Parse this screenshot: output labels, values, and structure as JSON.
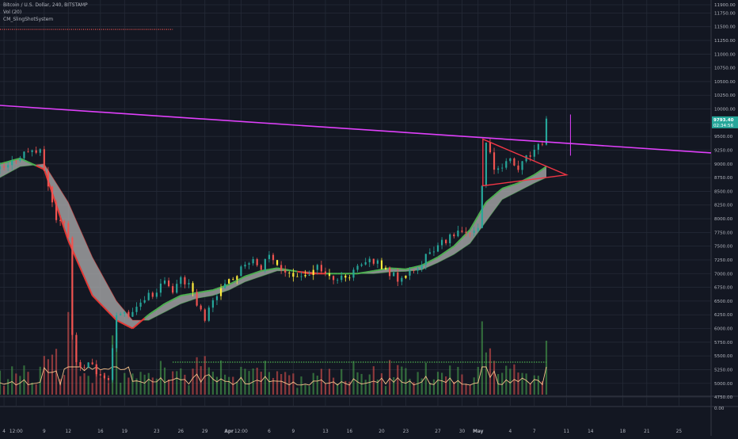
{
  "header": {
    "symbol": "Bitcoin / U.S. Dollar, 240, BITSTAMP",
    "indicators": [
      "Vol (20)",
      "CM_SlingShotSystem"
    ]
  },
  "colors": {
    "background": "#131722",
    "grid": "#252a37",
    "up_candle": "#26a69a",
    "down_candle": "#ef5350",
    "yellow_candle": "#ffeb3b",
    "ema_fast_up": "#4caf50",
    "ema_fast_down": "#e53935",
    "ema_fill": "#b2b2b2",
    "trendline": "#e040fb",
    "triangle": "#f23645",
    "vol_up": "#4caf50",
    "vol_down": "#ef5350",
    "vol_ma": "#f6c28b",
    "axis_text": "#b2b5be",
    "price_label_bg": "#26a69a"
  },
  "chart_data": {
    "type": "candlestick",
    "title": "Bitcoin / U.S. Dollar, 240, BITSTAMP",
    "ylim": [
      4650,
      11900
    ],
    "price_ticks": [
      "11900.00",
      "11750.00",
      "11500.00",
      "11250.00",
      "11000.00",
      "10750.00",
      "10500.00",
      "10250.00",
      "10000.00",
      "9750.00",
      "9500.00",
      "9250.00",
      "9000.00",
      "8750.00",
      "8500.00",
      "8250.00",
      "8000.00",
      "7750.00",
      "7500.00",
      "7250.00",
      "7000.00",
      "6750.00",
      "6500.00",
      "6250.00",
      "6000.00",
      "5750.00",
      "5500.00",
      "5250.00",
      "5000.00",
      "4750.00"
    ],
    "price_tick_values": [
      11900,
      11750,
      11500,
      11250,
      11000,
      10750,
      10500,
      10250,
      10000,
      9750,
      9500,
      9250,
      9000,
      8750,
      8500,
      8250,
      8000,
      7750,
      7500,
      7250,
      7000,
      6750,
      6500,
      6250,
      6000,
      5750,
      5500,
      5250,
      5000,
      4750
    ],
    "zero_label": "0.00",
    "current_price_label": "9793.40",
    "countdown_label": "02:34:56",
    "current_price": 9793.4,
    "x_ticks": [
      "4",
      "12:00",
      "9",
      "12",
      "16",
      "19",
      "23",
      "26",
      "29",
      "Apr",
      "12:00",
      "6",
      "9",
      "13",
      "16",
      "20",
      "23",
      "27",
      "30",
      "May",
      "4",
      "7",
      "11",
      "14",
      "18",
      "21",
      "25"
    ],
    "x_tick_days": [
      4,
      5.5,
      9,
      12,
      16,
      19,
      23,
      26,
      29,
      32,
      33.5,
      37,
      40,
      44,
      47,
      51,
      54,
      58,
      61,
      63,
      67,
      70,
      74,
      77,
      81,
      84,
      88
    ],
    "x_tick_bold": [
      false,
      false,
      false,
      false,
      false,
      false,
      false,
      false,
      false,
      true,
      false,
      false,
      false,
      false,
      false,
      false,
      false,
      false,
      false,
      true,
      false,
      false,
      false,
      false,
      false,
      false,
      false
    ],
    "x_range_days": [
      3.5,
      92
    ],
    "price_path": [
      [
        3.5,
        8900
      ],
      [
        4.5,
        8950
      ],
      [
        5.5,
        9100
      ],
      [
        6.5,
        9200
      ],
      [
        7.5,
        9250
      ],
      [
        8.5,
        9200
      ],
      [
        9.5,
        8600
      ],
      [
        10.5,
        8000
      ],
      [
        11.5,
        7900
      ],
      [
        12,
        7700
      ],
      [
        12.3,
        6100
      ],
      [
        13,
        5400
      ],
      [
        14,
        5300
      ],
      [
        15,
        5350
      ],
      [
        16,
        5100
      ],
      [
        17,
        5000
      ],
      [
        18,
        6200
      ],
      [
        19,
        6300
      ],
      [
        20,
        6250
      ],
      [
        21,
        6500
      ],
      [
        22,
        6600
      ],
      [
        23,
        6650
      ],
      [
        24,
        6900
      ],
      [
        25,
        6700
      ],
      [
        26,
        6900
      ],
      [
        27,
        6800
      ],
      [
        28,
        6400
      ],
      [
        29,
        6200
      ],
      [
        30,
        6500
      ],
      [
        31,
        6800
      ],
      [
        32,
        6900
      ],
      [
        33,
        7000
      ],
      [
        34,
        7200
      ],
      [
        35,
        7300
      ],
      [
        36,
        7100
      ],
      [
        37,
        7300
      ],
      [
        38,
        7200
      ],
      [
        39,
        7050
      ],
      [
        40,
        7000
      ],
      [
        41,
        6900
      ],
      [
        42,
        7000
      ],
      [
        43,
        7100
      ],
      [
        44,
        7050
      ],
      [
        45,
        6950
      ],
      [
        46,
        6900
      ],
      [
        47,
        6950
      ],
      [
        48,
        7100
      ],
      [
        49,
        7200
      ],
      [
        50,
        7250
      ],
      [
        51,
        7150
      ],
      [
        52,
        7000
      ],
      [
        53,
        6900
      ],
      [
        54,
        7000
      ],
      [
        55,
        7100
      ],
      [
        56,
        7200
      ],
      [
        57,
        7400
      ],
      [
        58,
        7500
      ],
      [
        59,
        7600
      ],
      [
        60,
        7700
      ],
      [
        61,
        7750
      ],
      [
        62,
        7800
      ],
      [
        63,
        7850
      ],
      [
        64,
        9400
      ],
      [
        65,
        8900
      ],
      [
        66,
        9000
      ],
      [
        67,
        9050
      ],
      [
        68,
        8900
      ],
      [
        69,
        9100
      ],
      [
        70,
        9200
      ],
      [
        71,
        9400
      ],
      [
        71.5,
        9793.4
      ]
    ],
    "ema_fast": [
      [
        3.5,
        9000
      ],
      [
        6,
        9100
      ],
      [
        9,
        8900
      ],
      [
        12,
        7600
      ],
      [
        15,
        6600
      ],
      [
        18,
        6150
      ],
      [
        20,
        6000
      ],
      [
        22,
        6250
      ],
      [
        24,
        6450
      ],
      [
        26,
        6600
      ],
      [
        28,
        6650
      ],
      [
        30,
        6700
      ],
      [
        32,
        6800
      ],
      [
        34,
        6950
      ],
      [
        36,
        7050
      ],
      [
        38,
        7100
      ],
      [
        40,
        7050
      ],
      [
        42,
        7000
      ],
      [
        44,
        7000
      ],
      [
        46,
        7000
      ],
      [
        48,
        7000
      ],
      [
        50,
        7050
      ],
      [
        52,
        7100
      ],
      [
        54,
        7080
      ],
      [
        56,
        7150
      ],
      [
        58,
        7300
      ],
      [
        60,
        7500
      ],
      [
        62,
        7800
      ],
      [
        64,
        8300
      ],
      [
        66,
        8550
      ],
      [
        68,
        8650
      ],
      [
        70,
        8800
      ],
      [
        71.5,
        8950
      ]
    ],
    "ema_slow": [
      [
        3.5,
        8750
      ],
      [
        6,
        8950
      ],
      [
        9,
        9000
      ],
      [
        12,
        8300
      ],
      [
        15,
        7300
      ],
      [
        18,
        6500
      ],
      [
        20,
        6150
      ],
      [
        22,
        6150
      ],
      [
        24,
        6300
      ],
      [
        26,
        6450
      ],
      [
        28,
        6550
      ],
      [
        30,
        6600
      ],
      [
        32,
        6700
      ],
      [
        34,
        6850
      ],
      [
        36,
        6950
      ],
      [
        38,
        7050
      ],
      [
        40,
        7050
      ],
      [
        42,
        7030
      ],
      [
        44,
        7000
      ],
      [
        46,
        7000
      ],
      [
        48,
        7000
      ],
      [
        50,
        7000
      ],
      [
        52,
        7030
      ],
      [
        54,
        7040
      ],
      [
        56,
        7070
      ],
      [
        58,
        7200
      ],
      [
        60,
        7350
      ],
      [
        62,
        7550
      ],
      [
        64,
        7950
      ],
      [
        66,
        8350
      ],
      [
        68,
        8500
      ],
      [
        70,
        8650
      ],
      [
        71.5,
        8750
      ]
    ],
    "trendline": [
      [
        0,
        10100
      ],
      [
        92,
        9200
      ]
    ],
    "triangle": [
      [
        63.6,
        9450
      ],
      [
        74,
        8800
      ],
      [
        63.6,
        8600
      ]
    ],
    "vertical_marker": {
      "day": 74.5,
      "from": 9150,
      "to": 9900
    },
    "red_dotted_level": {
      "price": 11450,
      "from_day": 3.5,
      "to_day": 25
    },
    "green_dotted_volume_level": {
      "from_day": 25,
      "to_day": 71.5
    },
    "volume_max_label": "",
    "volume_series": "synthetic bars following price volatility"
  }
}
